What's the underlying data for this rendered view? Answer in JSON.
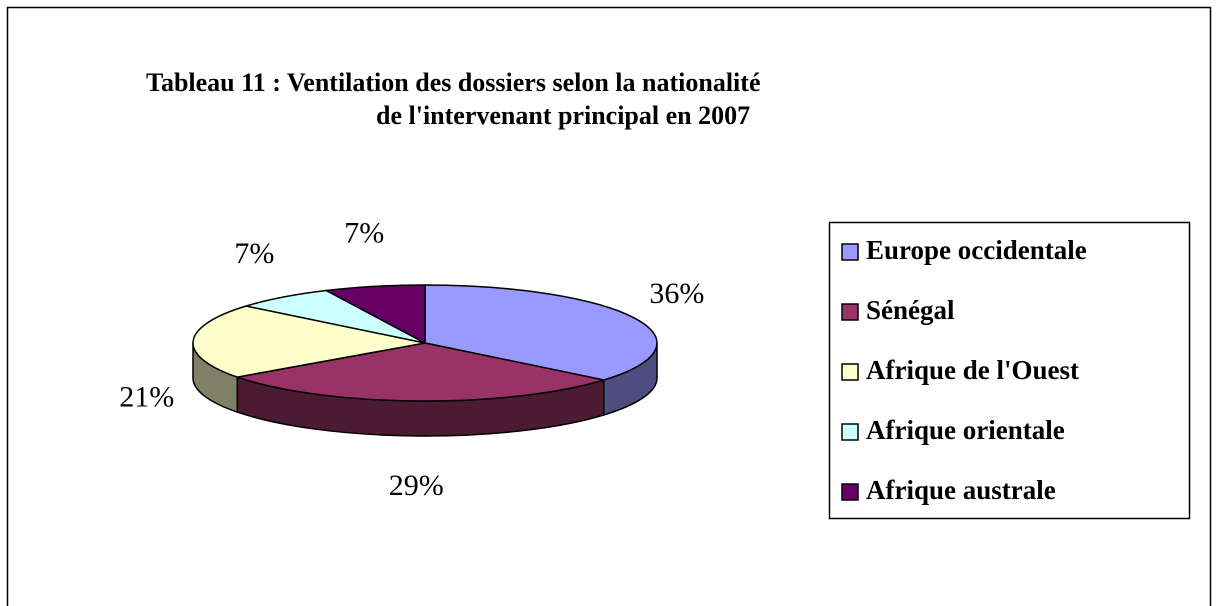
{
  "chart_data": {
    "type": "pie3d",
    "title": [
      "Tableau 11 : Ventilation des dossiers selon la nationalité",
      "de l'intervenant principal en 2007"
    ],
    "categories": [
      "Europe occidentale",
      "Sénégal",
      "Afrique de l'Ouest",
      "Afrique orientale",
      "Afrique australe"
    ],
    "values": [
      36,
      29,
      21,
      7,
      7
    ],
    "value_labels": [
      "36%",
      "29%",
      "21%",
      "7%",
      "7%"
    ],
    "colors": [
      "#9999ff",
      "#993366",
      "#ffffcc",
      "#ccffff",
      "#660066"
    ],
    "legend": "right"
  }
}
